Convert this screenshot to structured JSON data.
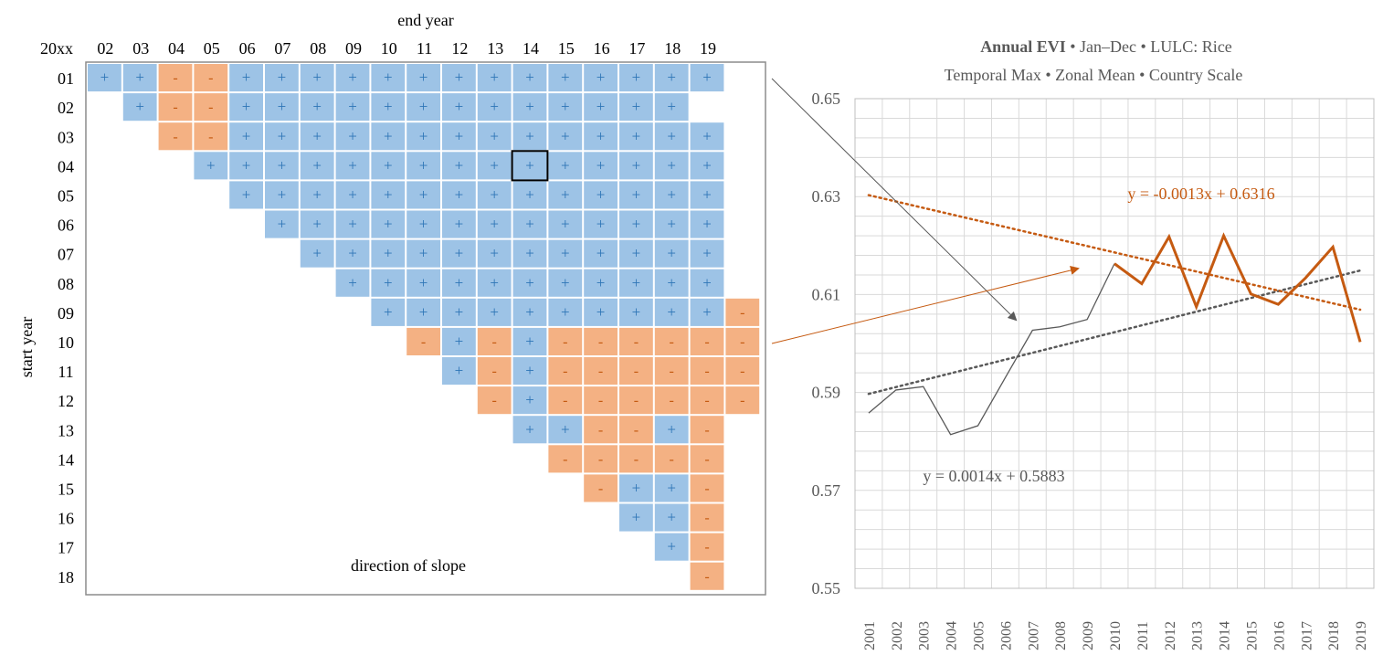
{
  "matrix": {
    "corner_label": "20xx",
    "col_axis_title": "end year",
    "row_axis_title": "start year",
    "annotation": "direction of slope",
    "col_labels": [
      "02",
      "03",
      "04",
      "05",
      "06",
      "07",
      "08",
      "09",
      "10",
      "11",
      "12",
      "13",
      "14",
      "15",
      "16",
      "17",
      "18",
      "19"
    ],
    "row_labels": [
      "01",
      "02",
      "03",
      "04",
      "05",
      "06",
      "07",
      "08",
      "09",
      "10",
      "11",
      "12",
      "13",
      "14",
      "15",
      "16",
      "17",
      "18"
    ],
    "rows": [
      "++--++++++++++++++",
      " +--+++++++++++++",
      "  --++++++++++++++",
      "   +++++++++++++++",
      "    ++++++++++++++",
      "     +++++++++++++",
      "      ++++++++++++",
      "       +++++++++++",
      "        ++++++++++-",
      "         -+-+------",
      "          +-+------",
      "           -+------",
      "            ++--+-",
      "             -----",
      "              -++-",
      "               ++-",
      "                +-",
      "                 -"
    ],
    "plus_symbol": "+",
    "minus_symbol": "-",
    "highlight": {
      "start": "04",
      "end": "14"
    },
    "colors": {
      "positive": "#9dc3e6",
      "negative": "#f4b183",
      "positive_text": "#2e75b6",
      "negative_text": "#c55a11",
      "grid_border": "#8c8c8c"
    }
  },
  "chart_data": {
    "type": "line",
    "title_bold": "Annual EVI",
    "title_rest": " • Jan–Dec • LULC: Rice",
    "subtitle": "Temporal Max • Zonal Mean • Country Scale",
    "xlabel": "",
    "ylabel": "",
    "ylim": [
      0.55,
      0.65
    ],
    "y_ticks": [
      "0.55",
      "0.57",
      "0.59",
      "0.61",
      "0.63",
      "0.65"
    ],
    "x": [
      "2001",
      "2002",
      "2003",
      "2004",
      "2005",
      "2006",
      "2007",
      "2008",
      "2009",
      "2010",
      "2011",
      "2012",
      "2013",
      "2014",
      "2015",
      "2016",
      "2017",
      "2018",
      "2019"
    ],
    "values": [
      0.5858,
      0.5905,
      0.5912,
      0.5814,
      0.5832,
      0.593,
      0.6027,
      0.6034,
      0.6049,
      0.6163,
      0.6122,
      0.6218,
      0.6075,
      0.622,
      0.6101,
      0.608,
      0.6134,
      0.6197,
      0.6003
    ],
    "highlight_range": [
      "2010",
      "2019"
    ],
    "trend_full": {
      "equation": "y = 0.0014x + 0.5883",
      "slope": 0.0014,
      "intercept": 0.5883
    },
    "trend_recent": {
      "equation": "y = -0.0013x + 0.6316",
      "slope": -0.0013,
      "intercept": 0.6316
    },
    "grid": true,
    "colors": {
      "series_full": "#595959",
      "series_recent": "#c55a11",
      "trend_full": "#595959",
      "trend_recent": "#c55a11",
      "grid": "#d9d9d9"
    }
  }
}
